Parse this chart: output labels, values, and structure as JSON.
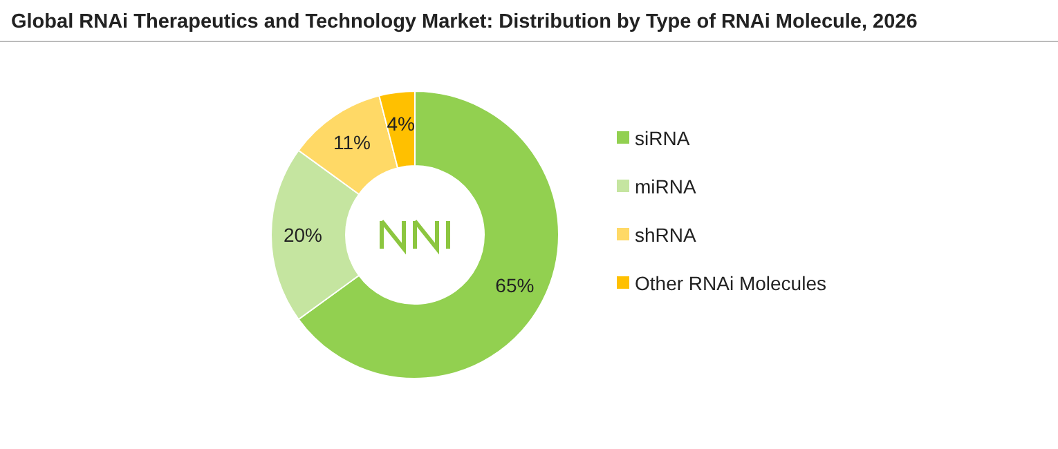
{
  "chart_data": {
    "type": "donut",
    "title": "Global RNAi Therapeutics and Technology Market: Distribution by Type of RNAi Molecule, 2026",
    "categories": [
      "siRNA",
      "miRNA",
      "shRNA",
      "Other RNAi Molecules"
    ],
    "values": [
      65,
      20,
      11,
      4
    ],
    "colors": [
      "#92d050",
      "#c5e5a0",
      "#ffd966",
      "#ffc000"
    ],
    "value_labels": [
      "65%",
      "20%",
      "11%",
      "4%"
    ],
    "legend": "right"
  }
}
